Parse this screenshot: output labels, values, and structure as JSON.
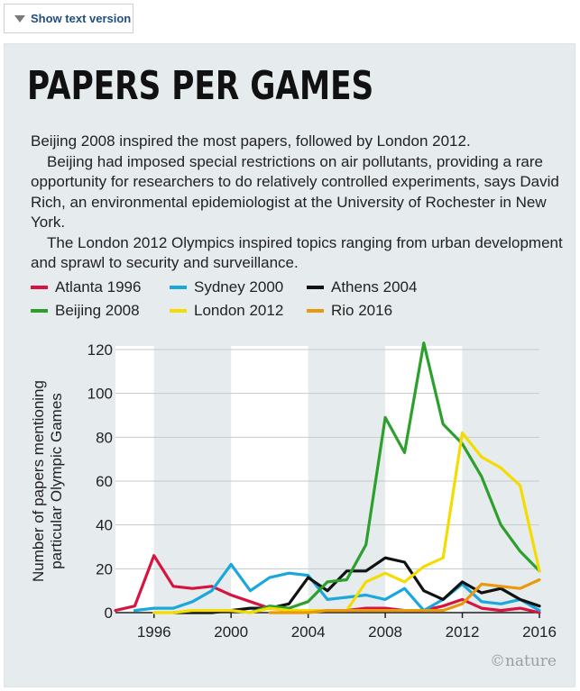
{
  "toggle": {
    "label": "Show text version"
  },
  "header": {
    "title": "PAPERS PER GAMES"
  },
  "body_text": {
    "p1": "Beijing 2008 inspired the most papers, followed by London 2012.",
    "p2": "Beijing had imposed special restrictions on air pollutants, providing a rare opportunity for researchers to do relatively controlled experiments, says David Rich, an environmental epidemiologist at the University of Rochester in New York.",
    "p3": "The London 2012 Olympics inspired topics ranging from urban development and sprawl to security and surveillance."
  },
  "credit": "©nature",
  "chart_data": {
    "type": "line",
    "ylabel_line1": "Number of papers mentioning",
    "ylabel_line2": "particular Olympic Games",
    "ylim": [
      0,
      120
    ],
    "xlim": [
      1994,
      2016
    ],
    "yticks": [
      "0",
      "20",
      "40",
      "60",
      "80",
      "100",
      "120"
    ],
    "xticks": [
      "1996",
      "2000",
      "2004",
      "2008",
      "2012",
      "2016"
    ],
    "grid": true,
    "background_stripes": "alternating white and grey bands between x-tick years",
    "legend_position": "top",
    "series": [
      {
        "name": "Atlanta 1996",
        "color": "#d6143f",
        "x": [
          1994,
          1995,
          1996,
          1997,
          1998,
          1999,
          2000,
          2001,
          2002,
          2003,
          2004,
          2005,
          2006,
          2007,
          2008,
          2009,
          2010,
          2011,
          2012,
          2013,
          2014,
          2015,
          2016
        ],
        "y": [
          1,
          3,
          26,
          12,
          11,
          12,
          8,
          5,
          2,
          1,
          1,
          1,
          1,
          2,
          2,
          1,
          1,
          3,
          6,
          2,
          1,
          2,
          0
        ]
      },
      {
        "name": "Sydney 2000",
        "color": "#1aa7dc",
        "x": [
          1995,
          1996,
          1997,
          1998,
          1999,
          2000,
          2001,
          2002,
          2003,
          2004,
          2005,
          2006,
          2007,
          2008,
          2009,
          2010,
          2011,
          2012,
          2013,
          2014,
          2015,
          2016
        ],
        "y": [
          1,
          2,
          2,
          5,
          10,
          22,
          10,
          16,
          18,
          17,
          6,
          7,
          8,
          6,
          11,
          1,
          6,
          13,
          5,
          4,
          6,
          1
        ]
      },
      {
        "name": "Athens 2004",
        "color": "#111111",
        "x": [
          1997,
          1998,
          1999,
          2000,
          2001,
          2002,
          2003,
          2004,
          2005,
          2006,
          2007,
          2008,
          2009,
          2010,
          2011,
          2012,
          2013,
          2014,
          2015,
          2016
        ],
        "y": [
          0,
          0,
          0,
          1,
          2,
          2,
          4,
          16,
          10,
          19,
          19,
          25,
          23,
          10,
          6,
          14,
          9,
          11,
          6,
          3
        ]
      },
      {
        "name": "Beijing 2008",
        "color": "#2ca02c",
        "x": [
          2001,
          2002,
          2003,
          2004,
          2005,
          2006,
          2007,
          2008,
          2009,
          2010,
          2011,
          2012,
          2013,
          2014,
          2015,
          2016
        ],
        "y": [
          0,
          3,
          2,
          5,
          14,
          15,
          31,
          89,
          73,
          123,
          86,
          77,
          62,
          40,
          28,
          19
        ]
      },
      {
        "name": "London 2012",
        "color": "#f5dc00",
        "x": [
          1996,
          1997,
          1998,
          1999,
          2000,
          2001,
          2002,
          2003,
          2004,
          2005,
          2006,
          2007,
          2008,
          2009,
          2010,
          2011,
          2012,
          2013,
          2014,
          2015,
          2016
        ],
        "y": [
          0,
          0,
          1,
          1,
          1,
          0,
          2,
          1,
          1,
          1,
          1,
          14,
          18,
          14,
          21,
          25,
          82,
          71,
          66,
          58,
          19
        ]
      },
      {
        "name": "Rio 2016",
        "color": "#e89a0c",
        "x": [
          2002,
          2003,
          2004,
          2005,
          2006,
          2007,
          2008,
          2009,
          2010,
          2011,
          2012,
          2013,
          2014,
          2015,
          2016
        ],
        "y": [
          0,
          0,
          0,
          1,
          1,
          1,
          1,
          1,
          1,
          1,
          4,
          13,
          12,
          11,
          15
        ]
      }
    ]
  }
}
